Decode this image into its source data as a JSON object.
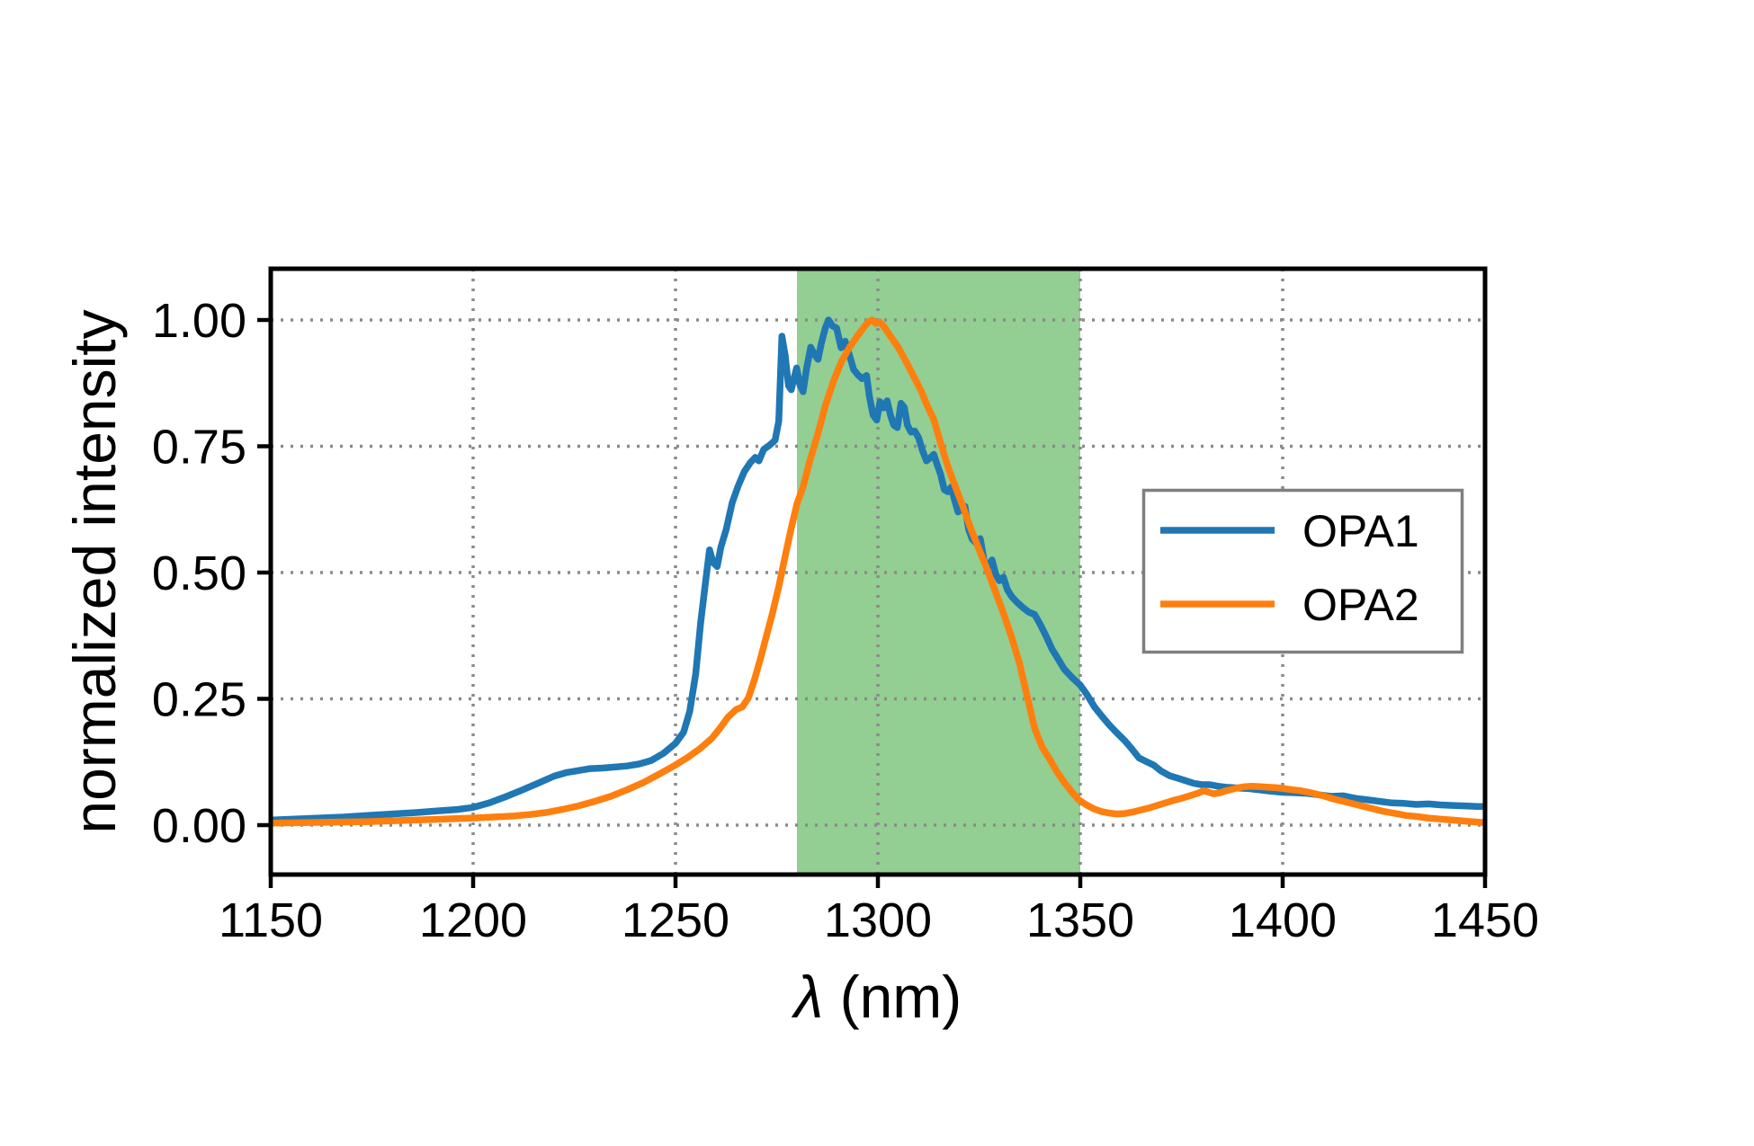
{
  "figure": {
    "background": "#ffffff",
    "axes_color": "#000000",
    "grid_color": "#8a8a8a",
    "legend_border_color": "#7f7f7f"
  },
  "chart_data": {
    "type": "line",
    "title": "",
    "xlabel": "λ (nm)",
    "ylabel": "normalized intensity",
    "xlim": [
      1150,
      1450
    ],
    "ylim": [
      -0.1,
      1.1
    ],
    "grid": "dotted",
    "x_ticks": [
      1150,
      1200,
      1250,
      1300,
      1350,
      1400,
      1450
    ],
    "x_tick_labels": [
      "1150",
      "1200",
      "1250",
      "1300",
      "1350",
      "1400",
      "1450"
    ],
    "y_ticks": [
      0.0,
      0.25,
      0.5,
      0.75,
      1.0
    ],
    "y_tick_labels": [
      "0.00",
      "0.25",
      "0.50",
      "0.75",
      "1.00"
    ],
    "highlight_band": {
      "x0": 1280,
      "x1": 1350,
      "color": "#93ce93"
    },
    "legend": {
      "position": "center right",
      "entries": [
        {
          "label": "OPA1",
          "color": "#1f77b4"
        },
        {
          "label": "OPA2",
          "color": "#ff7f0e"
        }
      ]
    },
    "series": [
      {
        "name": "OPA1",
        "color": "#1f77b4",
        "points": [
          [
            1150,
            0.01
          ],
          [
            1156,
            0.012
          ],
          [
            1162,
            0.014
          ],
          [
            1168,
            0.016
          ],
          [
            1174,
            0.019
          ],
          [
            1180,
            0.022
          ],
          [
            1186,
            0.025
          ],
          [
            1191,
            0.028
          ],
          [
            1196,
            0.031
          ],
          [
            1200,
            0.035
          ],
          [
            1204,
            0.044
          ],
          [
            1208,
            0.056
          ],
          [
            1212,
            0.069
          ],
          [
            1216,
            0.083
          ],
          [
            1220,
            0.097
          ],
          [
            1223,
            0.104
          ],
          [
            1226,
            0.108
          ],
          [
            1229,
            0.112
          ],
          [
            1232,
            0.113
          ],
          [
            1235,
            0.115
          ],
          [
            1238,
            0.117
          ],
          [
            1241,
            0.121
          ],
          [
            1244,
            0.128
          ],
          [
            1247,
            0.142
          ],
          [
            1250,
            0.162
          ],
          [
            1252,
            0.184
          ],
          [
            1253.5,
            0.225
          ],
          [
            1255,
            0.3
          ],
          [
            1256.2,
            0.4
          ],
          [
            1257.4,
            0.48
          ],
          [
            1258.4,
            0.545
          ],
          [
            1259.3,
            0.52
          ],
          [
            1260.3,
            0.512
          ],
          [
            1261.2,
            0.55
          ],
          [
            1262.5,
            0.585
          ],
          [
            1264,
            0.638
          ],
          [
            1265.5,
            0.672
          ],
          [
            1267,
            0.7
          ],
          [
            1268.5,
            0.718
          ],
          [
            1269.7,
            0.728
          ],
          [
            1270.6,
            0.721
          ],
          [
            1271.8,
            0.744
          ],
          [
            1273.2,
            0.752
          ],
          [
            1274.6,
            0.762
          ],
          [
            1275.5,
            0.8
          ],
          [
            1276.3,
            0.968
          ],
          [
            1277.1,
            0.93
          ],
          [
            1277.9,
            0.87
          ],
          [
            1278.6,
            0.862
          ],
          [
            1279.3,
            0.885
          ],
          [
            1279.9,
            0.905
          ],
          [
            1280.7,
            0.872
          ],
          [
            1281.5,
            0.858
          ],
          [
            1282.4,
            0.905
          ],
          [
            1283.4,
            0.946
          ],
          [
            1284.3,
            0.932
          ],
          [
            1285.2,
            0.922
          ],
          [
            1286.1,
            0.956
          ],
          [
            1287,
            0.984
          ],
          [
            1287.8,
            1.0
          ],
          [
            1288.8,
            0.988
          ],
          [
            1289.8,
            0.984
          ],
          [
            1290.9,
            0.945
          ],
          [
            1291.9,
            0.958
          ],
          [
            1292.9,
            0.932
          ],
          [
            1294,
            0.902
          ],
          [
            1295,
            0.892
          ],
          [
            1296.1,
            0.884
          ],
          [
            1297.2,
            0.89
          ],
          [
            1297.9,
            0.848
          ],
          [
            1298.8,
            0.812
          ],
          [
            1299.7,
            0.802
          ],
          [
            1300.5,
            0.838
          ],
          [
            1301.4,
            0.826
          ],
          [
            1302.3,
            0.84
          ],
          [
            1303.1,
            0.812
          ],
          [
            1303.9,
            0.792
          ],
          [
            1304.8,
            0.787
          ],
          [
            1305.7,
            0.835
          ],
          [
            1306.5,
            0.827
          ],
          [
            1307.3,
            0.792
          ],
          [
            1308.2,
            0.778
          ],
          [
            1309.1,
            0.78
          ],
          [
            1310,
            0.768
          ],
          [
            1311,
            0.742
          ],
          [
            1312,
            0.721
          ],
          [
            1312.9,
            0.727
          ],
          [
            1313.8,
            0.734
          ],
          [
            1314.7,
            0.712
          ],
          [
            1315.5,
            0.694
          ],
          [
            1316.4,
            0.664
          ],
          [
            1317.3,
            0.66
          ],
          [
            1318.1,
            0.669
          ],
          [
            1319,
            0.642
          ],
          [
            1319.8,
            0.62
          ],
          [
            1320.7,
            0.626
          ],
          [
            1321.5,
            0.631
          ],
          [
            1322.4,
            0.586
          ],
          [
            1323.3,
            0.566
          ],
          [
            1324.3,
            0.558
          ],
          [
            1325.3,
            0.567
          ],
          [
            1326.3,
            0.522
          ],
          [
            1327.2,
            0.512
          ],
          [
            1328.2,
            0.525
          ],
          [
            1329.1,
            0.497
          ],
          [
            1330,
            0.484
          ],
          [
            1331,
            0.491
          ],
          [
            1332,
            0.466
          ],
          [
            1333,
            0.453
          ],
          [
            1334.4,
            0.441
          ],
          [
            1335.8,
            0.431
          ],
          [
            1337.2,
            0.422
          ],
          [
            1338.7,
            0.417
          ],
          [
            1340,
            0.399
          ],
          [
            1341.5,
            0.375
          ],
          [
            1343,
            0.349
          ],
          [
            1344.5,
            0.329
          ],
          [
            1346,
            0.309
          ],
          [
            1348,
            0.292
          ],
          [
            1350,
            0.277
          ],
          [
            1351.6,
            0.259
          ],
          [
            1353.5,
            0.234
          ],
          [
            1355.4,
            0.215
          ],
          [
            1357.2,
            0.198
          ],
          [
            1359,
            0.183
          ],
          [
            1361,
            0.167
          ],
          [
            1362.7,
            0.151
          ],
          [
            1364.5,
            0.133
          ],
          [
            1366.3,
            0.126
          ],
          [
            1368.1,
            0.119
          ],
          [
            1370,
            0.107
          ],
          [
            1372,
            0.098
          ],
          [
            1374,
            0.093
          ],
          [
            1376,
            0.088
          ],
          [
            1378,
            0.083
          ],
          [
            1380,
            0.08
          ],
          [
            1382,
            0.08
          ],
          [
            1384,
            0.077
          ],
          [
            1386,
            0.075
          ],
          [
            1388,
            0.074
          ],
          [
            1390,
            0.073
          ],
          [
            1392,
            0.072
          ],
          [
            1394,
            0.07
          ],
          [
            1397,
            0.067
          ],
          [
            1400,
            0.065
          ],
          [
            1403,
            0.064
          ],
          [
            1406,
            0.063
          ],
          [
            1409,
            0.06
          ],
          [
            1412,
            0.057
          ],
          [
            1415,
            0.058
          ],
          [
            1418,
            0.053
          ],
          [
            1421,
            0.05
          ],
          [
            1424,
            0.047
          ],
          [
            1427,
            0.044
          ],
          [
            1430,
            0.043
          ],
          [
            1433,
            0.041
          ],
          [
            1436,
            0.042
          ],
          [
            1439,
            0.04
          ],
          [
            1442,
            0.039
          ],
          [
            1445,
            0.038
          ],
          [
            1448,
            0.037
          ],
          [
            1450,
            0.037
          ]
        ]
      },
      {
        "name": "OPA2",
        "color": "#ff7f0e",
        "points": [
          [
            1150,
            0.004
          ],
          [
            1158,
            0.005
          ],
          [
            1166,
            0.006
          ],
          [
            1174,
            0.007
          ],
          [
            1182,
            0.009
          ],
          [
            1190,
            0.011
          ],
          [
            1196,
            0.013
          ],
          [
            1200,
            0.014
          ],
          [
            1205,
            0.016
          ],
          [
            1210,
            0.018
          ],
          [
            1214,
            0.021
          ],
          [
            1218,
            0.025
          ],
          [
            1222,
            0.031
          ],
          [
            1226,
            0.038
          ],
          [
            1230,
            0.047
          ],
          [
            1234,
            0.057
          ],
          [
            1238,
            0.07
          ],
          [
            1242,
            0.084
          ],
          [
            1246,
            0.101
          ],
          [
            1250,
            0.119
          ],
          [
            1253,
            0.134
          ],
          [
            1256,
            0.151
          ],
          [
            1259,
            0.172
          ],
          [
            1261,
            0.192
          ],
          [
            1263,
            0.214
          ],
          [
            1265,
            0.229
          ],
          [
            1266.5,
            0.234
          ],
          [
            1268,
            0.252
          ],
          [
            1269.5,
            0.288
          ],
          [
            1271,
            0.33
          ],
          [
            1272.5,
            0.376
          ],
          [
            1274,
            0.421
          ],
          [
            1275.5,
            0.472
          ],
          [
            1277,
            0.529
          ],
          [
            1278.5,
            0.585
          ],
          [
            1280,
            0.636
          ],
          [
            1281.5,
            0.669
          ],
          [
            1283,
            0.716
          ],
          [
            1285,
            0.77
          ],
          [
            1287,
            0.83
          ],
          [
            1289,
            0.878
          ],
          [
            1291,
            0.918
          ],
          [
            1293,
            0.946
          ],
          [
            1295,
            0.969
          ],
          [
            1296.5,
            0.985
          ],
          [
            1297.6,
            0.996
          ],
          [
            1298.6,
            1.0
          ],
          [
            1299.5,
            0.993
          ],
          [
            1300.4,
            0.996
          ],
          [
            1301.6,
            0.986
          ],
          [
            1303,
            0.969
          ],
          [
            1305,
            0.946
          ],
          [
            1307,
            0.917
          ],
          [
            1309,
            0.886
          ],
          [
            1310.6,
            0.861
          ],
          [
            1312.2,
            0.83
          ],
          [
            1313.8,
            0.803
          ],
          [
            1315.6,
            0.754
          ],
          [
            1317.4,
            0.707
          ],
          [
            1319,
            0.673
          ],
          [
            1321,
            0.631
          ],
          [
            1323,
            0.586
          ],
          [
            1325,
            0.546
          ],
          [
            1327,
            0.506
          ],
          [
            1329,
            0.463
          ],
          [
            1331,
            0.42
          ],
          [
            1333,
            0.373
          ],
          [
            1335,
            0.32
          ],
          [
            1336.8,
            0.258
          ],
          [
            1338.7,
            0.192
          ],
          [
            1340.6,
            0.154
          ],
          [
            1342.4,
            0.131
          ],
          [
            1344.2,
            0.106
          ],
          [
            1346,
            0.085
          ],
          [
            1348,
            0.065
          ],
          [
            1349.6,
            0.05
          ],
          [
            1351.5,
            0.04
          ],
          [
            1353.4,
            0.032
          ],
          [
            1355.2,
            0.027
          ],
          [
            1357,
            0.024
          ],
          [
            1359,
            0.022
          ],
          [
            1361,
            0.023
          ],
          [
            1363,
            0.026
          ],
          [
            1365,
            0.03
          ],
          [
            1367,
            0.034
          ],
          [
            1369,
            0.039
          ],
          [
            1371,
            0.044
          ],
          [
            1373,
            0.049
          ],
          [
            1375,
            0.053
          ],
          [
            1377,
            0.058
          ],
          [
            1379,
            0.063
          ],
          [
            1380.5,
            0.068
          ],
          [
            1381.8,
            0.065
          ],
          [
            1383,
            0.062
          ],
          [
            1384.5,
            0.064
          ],
          [
            1386,
            0.068
          ],
          [
            1387.5,
            0.071
          ],
          [
            1389,
            0.074
          ],
          [
            1390.5,
            0.076
          ],
          [
            1392.5,
            0.077
          ],
          [
            1394.5,
            0.076
          ],
          [
            1396.5,
            0.075
          ],
          [
            1398.5,
            0.074
          ],
          [
            1400.5,
            0.072
          ],
          [
            1402.5,
            0.07
          ],
          [
            1404.5,
            0.068
          ],
          [
            1406.5,
            0.065
          ],
          [
            1408.5,
            0.061
          ],
          [
            1410.5,
            0.057
          ],
          [
            1412.5,
            0.052
          ],
          [
            1414.5,
            0.048
          ],
          [
            1416.5,
            0.044
          ],
          [
            1418.5,
            0.04
          ],
          [
            1420.5,
            0.036
          ],
          [
            1422.5,
            0.032
          ],
          [
            1424.5,
            0.028
          ],
          [
            1426.5,
            0.025
          ],
          [
            1428.5,
            0.022
          ],
          [
            1430.5,
            0.019
          ],
          [
            1433,
            0.017
          ],
          [
            1436,
            0.014
          ],
          [
            1439,
            0.012
          ],
          [
            1442,
            0.01
          ],
          [
            1445,
            0.008
          ],
          [
            1448,
            0.006
          ],
          [
            1450,
            0.005
          ]
        ]
      }
    ]
  }
}
